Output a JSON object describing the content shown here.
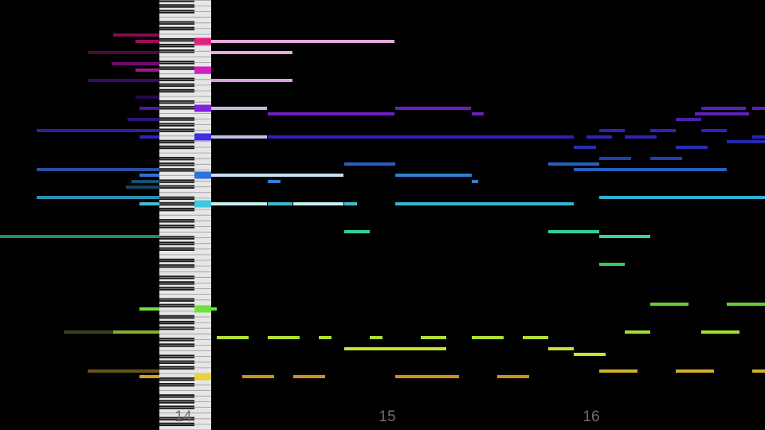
{
  "timeline": {
    "measure_labels": [
      "14",
      "15",
      "16"
    ]
  }
}
